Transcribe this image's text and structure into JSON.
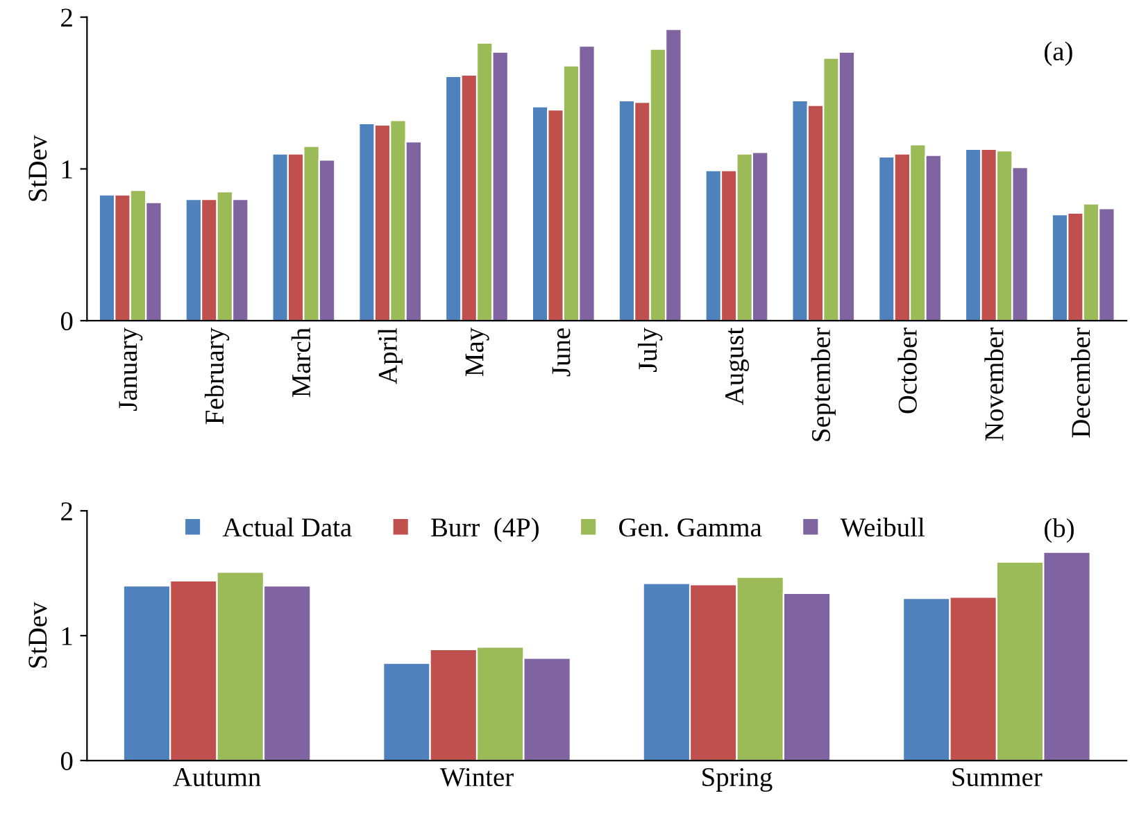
{
  "chart_data": [
    {
      "type": "bar",
      "ylabel": "StDev",
      "annotations": [
        "(a)"
      ],
      "categories": [
        "January",
        "February",
        "March",
        "April",
        "May",
        "June",
        "July",
        "August",
        "September",
        "October",
        "November",
        "December"
      ],
      "series": [
        {
          "color": "#4f81bd",
          "values": [
            0.83,
            0.8,
            1.1,
            1.3,
            1.61,
            1.41,
            1.45,
            0.99,
            1.45,
            1.08,
            1.13,
            0.7
          ]
        },
        {
          "color": "#c0504d",
          "values": [
            0.83,
            0.8,
            1.1,
            1.29,
            1.62,
            1.39,
            1.44,
            0.99,
            1.42,
            1.1,
            1.13,
            0.71
          ]
        },
        {
          "color": "#9bbb59",
          "values": [
            0.86,
            0.85,
            1.15,
            1.32,
            1.83,
            1.68,
            1.79,
            1.1,
            1.73,
            1.16,
            1.12,
            0.77
          ]
        },
        {
          "color": "#8064a2",
          "values": [
            0.78,
            0.8,
            1.06,
            1.18,
            1.77,
            1.81,
            1.92,
            1.11,
            1.77,
            1.09,
            1.01,
            0.74
          ]
        }
      ],
      "ylim": [
        0,
        2
      ],
      "yticks": [
        0,
        1,
        2
      ],
      "grid": false,
      "legend": false
    },
    {
      "type": "bar",
      "ylabel": "StDev",
      "annotations": [
        "(b)"
      ],
      "categories": [
        "Autumn",
        "Winter",
        "Spring",
        "Summer"
      ],
      "series": [
        {
          "name": "Actual Data",
          "color": "#4f81bd",
          "values": [
            1.4,
            0.78,
            1.42,
            1.3
          ]
        },
        {
          "name": "Burr  (4P)",
          "color": "#c0504d",
          "values": [
            1.44,
            0.89,
            1.41,
            1.31
          ]
        },
        {
          "name": "Gen. Gamma",
          "color": "#9bbb59",
          "values": [
            1.51,
            0.91,
            1.47,
            1.59
          ]
        },
        {
          "name": "Weibull",
          "color": "#8064a2",
          "values": [
            1.4,
            0.82,
            1.34,
            1.67
          ]
        }
      ],
      "ylim": [
        0,
        2
      ],
      "yticks": [
        0,
        1,
        2
      ],
      "grid": false,
      "legend": "top"
    }
  ]
}
